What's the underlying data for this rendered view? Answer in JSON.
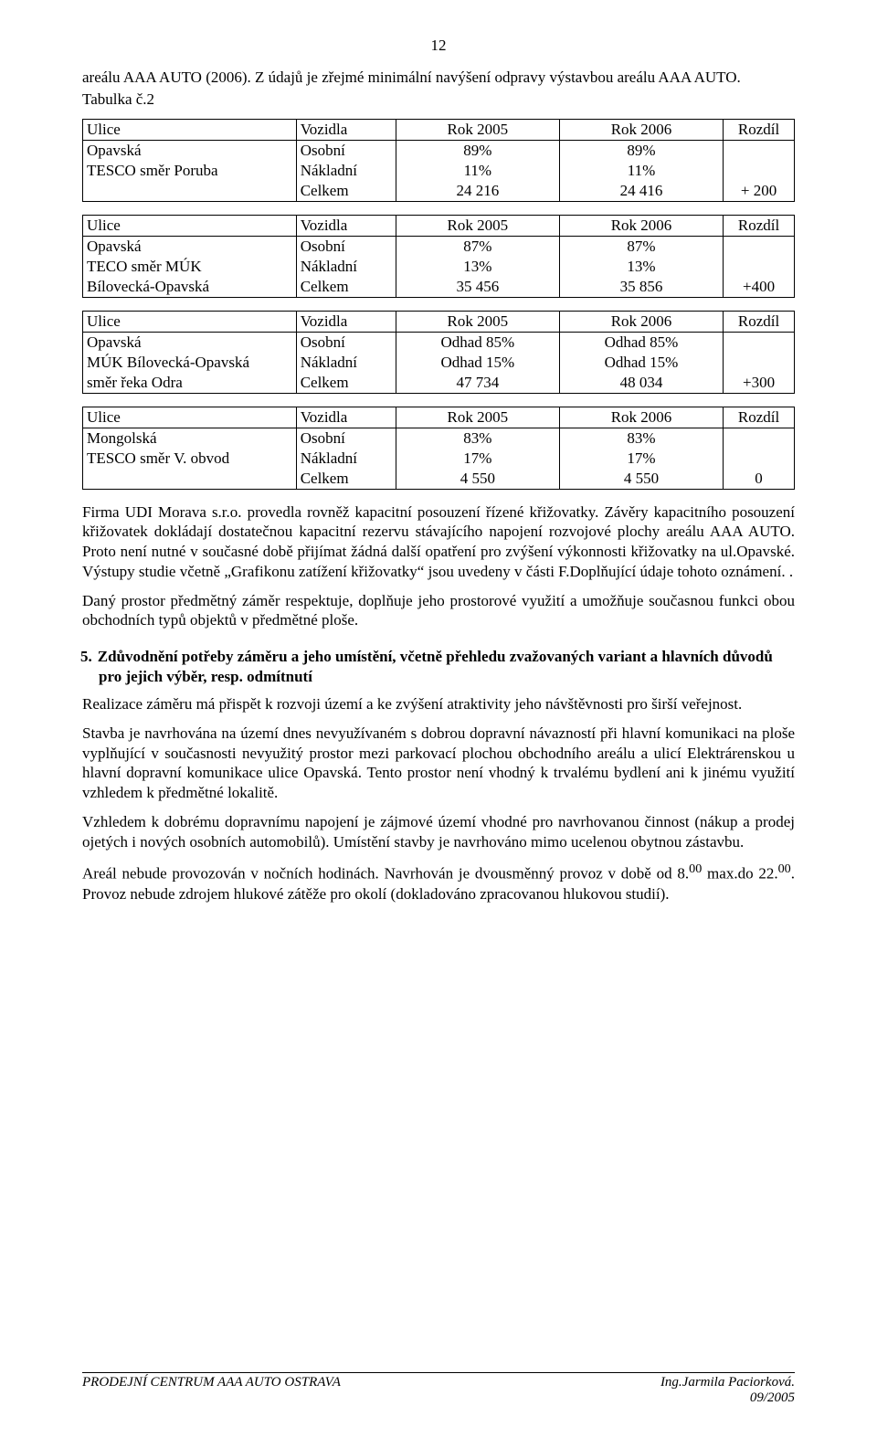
{
  "page_number": "12",
  "intro": {
    "line1": "areálu AAA AUTO (2006). Z údajů je zřejmé minimální navýšení odpravy výstavbou areálu AAA AUTO.",
    "line2": "Tabulka č.2"
  },
  "tables": [
    {
      "header": {
        "c0": "Ulice",
        "c1": "Vozidla",
        "c2": "Rok 2005",
        "c3": "Rok 2006",
        "c4": "Rozdíl"
      },
      "rows": [
        {
          "c0": "Opavská",
          "c1": "Osobní",
          "c2": "89%",
          "c3": "89%",
          "c4": ""
        },
        {
          "c0": "TESCO směr Poruba",
          "c1": "Nákladní",
          "c2": "11%",
          "c3": "11%",
          "c4": ""
        },
        {
          "c0": "",
          "c1": "Celkem",
          "c2": "24 216",
          "c3": "24 416",
          "c4": "+ 200"
        }
      ]
    },
    {
      "header": {
        "c0": "Ulice",
        "c1": "Vozidla",
        "c2": "Rok 2005",
        "c3": "Rok 2006",
        "c4": "Rozdíl"
      },
      "rows": [
        {
          "c0": "Opavská",
          "c1": "Osobní",
          "c2": "87%",
          "c3": "87%",
          "c4": ""
        },
        {
          "c0": "TECO směr MÚK",
          "c1": "Nákladní",
          "c2": "13%",
          "c3": "13%",
          "c4": ""
        },
        {
          "c0": "Bílovecká-Opavská",
          "c1": "Celkem",
          "c2": "35 456",
          "c3": "35 856",
          "c4": "+400"
        }
      ]
    },
    {
      "header": {
        "c0": "Ulice",
        "c1": "Vozidla",
        "c2": "Rok 2005",
        "c3": "Rok 2006",
        "c4": "Rozdíl"
      },
      "rows": [
        {
          "c0": "Opavská",
          "c1": "Osobní",
          "c2": "Odhad 85%",
          "c3": "Odhad 85%",
          "c4": ""
        },
        {
          "c0": "MÚK Bílovecká-Opavská",
          "c1": "Nákladní",
          "c2": "Odhad 15%",
          "c3": "Odhad 15%",
          "c4": ""
        },
        {
          "c0": "směr řeka Odra",
          "c1": "Celkem",
          "c2": "47 734",
          "c3": "48 034",
          "c4": "+300"
        }
      ]
    },
    {
      "header": {
        "c0": "Ulice",
        "c1": "Vozidla",
        "c2": "Rok 2005",
        "c3": "Rok 2006",
        "c4": "Rozdíl"
      },
      "rows": [
        {
          "c0": "Mongolská",
          "c1": "Osobní",
          "c2": "83%",
          "c3": "83%",
          "c4": ""
        },
        {
          "c0": "TESCO směr V. obvod",
          "c1": "Nákladní",
          "c2": "17%",
          "c3": "17%",
          "c4": ""
        },
        {
          "c0": "",
          "c1": "Celkem",
          "c2": "4 550",
          "c3": "4 550",
          "c4": "0"
        }
      ]
    }
  ],
  "paras": {
    "p1": "Firma UDI Morava s.r.o. provedla rovněž kapacitní posouzení řízené křižovatky. Závěry kapacitního posouzení křižovatek dokládají dostatečnou kapacitní rezervu stávajícího napojení rozvojové plochy areálu AAA AUTO. Proto není nutné v současné době přijímat žádná další opatření pro zvýšení výkonnosti křižovatky na ul.Opavské. Výstupy studie včetně „Grafikonu zatížení křižovatky“ jsou uvedeny v části F.Doplňující údaje tohoto oznámení. .",
    "p2": "Daný prostor předmětný záměr respektuje, doplňuje jeho prostorové využití a umožňuje současnou funkci obou obchodních typů objektů v předmětné ploše."
  },
  "section5": {
    "num": "5.",
    "title": "Zdůvodnění potřeby záměru a jeho umístění, včetně přehledu zvažovaných variant a hlavních důvodů pro jejich výběr, resp. odmítnutí"
  },
  "paras2": {
    "p3": "Realizace záměru má přispět k rozvoji území a ke zvýšení atraktivity jeho návštěvnosti pro širší veřejnost.",
    "p4": "Stavba je navrhována na území dnes nevyužívaném s dobrou dopravní návazností při hlavní komunikaci na ploše vyplňující v současnosti nevyužitý prostor mezi parkovací plochou obchodního areálu a ulicí Elektrárenskou u hlavní dopravní komunikace ulice Opavská. Tento prostor není vhodný k trvalému bydlení ani k jinému využití vzhledem k předmětné lokalitě.",
    "p5": "Vzhledem k dobrému dopravnímu napojení je zájmové území vhodné pro navrhovanou činnost (nákup a prodej ojetých i nových osobních automobilů). Umístění stavby je navrhováno mimo ucelenou obytnou zástavbu.",
    "p6_a": "Areál nebude provozován v nočních hodinách. Navrhován je dvousměnný provoz v době od 8.",
    "p6_b": " max.do 22.",
    "p6_c": ". Provoz nebude zdrojem hlukové zátěže pro okolí (dokladováno zpracovanou hlukovou studií).",
    "sup1": "00",
    "sup2": "00"
  },
  "footer": {
    "left": "PRODEJNÍ CENTRUM AAA AUTO OSTRAVA",
    "right1": "Ing.Jarmila Paciorková.",
    "right2": "09/2005"
  }
}
